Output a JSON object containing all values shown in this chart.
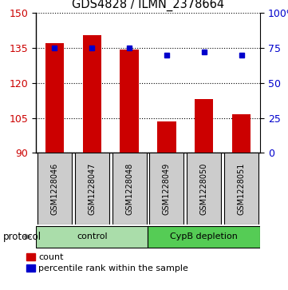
{
  "title": "GDS4828 / ILMN_2378664",
  "samples": [
    "GSM1228046",
    "GSM1228047",
    "GSM1228048",
    "GSM1228049",
    "GSM1228050",
    "GSM1228051"
  ],
  "bar_values": [
    137.0,
    140.5,
    134.5,
    103.5,
    113.0,
    106.5
  ],
  "percentile_values": [
    75,
    75,
    75,
    70,
    72,
    70
  ],
  "y_min": 90,
  "y_max": 150,
  "y_ticks_left": [
    90,
    105,
    120,
    135,
    150
  ],
  "y_ticks_right": [
    0,
    25,
    50,
    75,
    100
  ],
  "bar_color": "#cc0000",
  "dot_color": "#0000cc",
  "groups": [
    {
      "label": "control",
      "indices": [
        0,
        1,
        2
      ],
      "color": "#aaddaa"
    },
    {
      "label": "CypB depletion",
      "indices": [
        3,
        4,
        5
      ],
      "color": "#55cc55"
    }
  ],
  "protocol_label": "protocol",
  "background_color": "#ffffff",
  "sample_box_color": "#cccccc"
}
